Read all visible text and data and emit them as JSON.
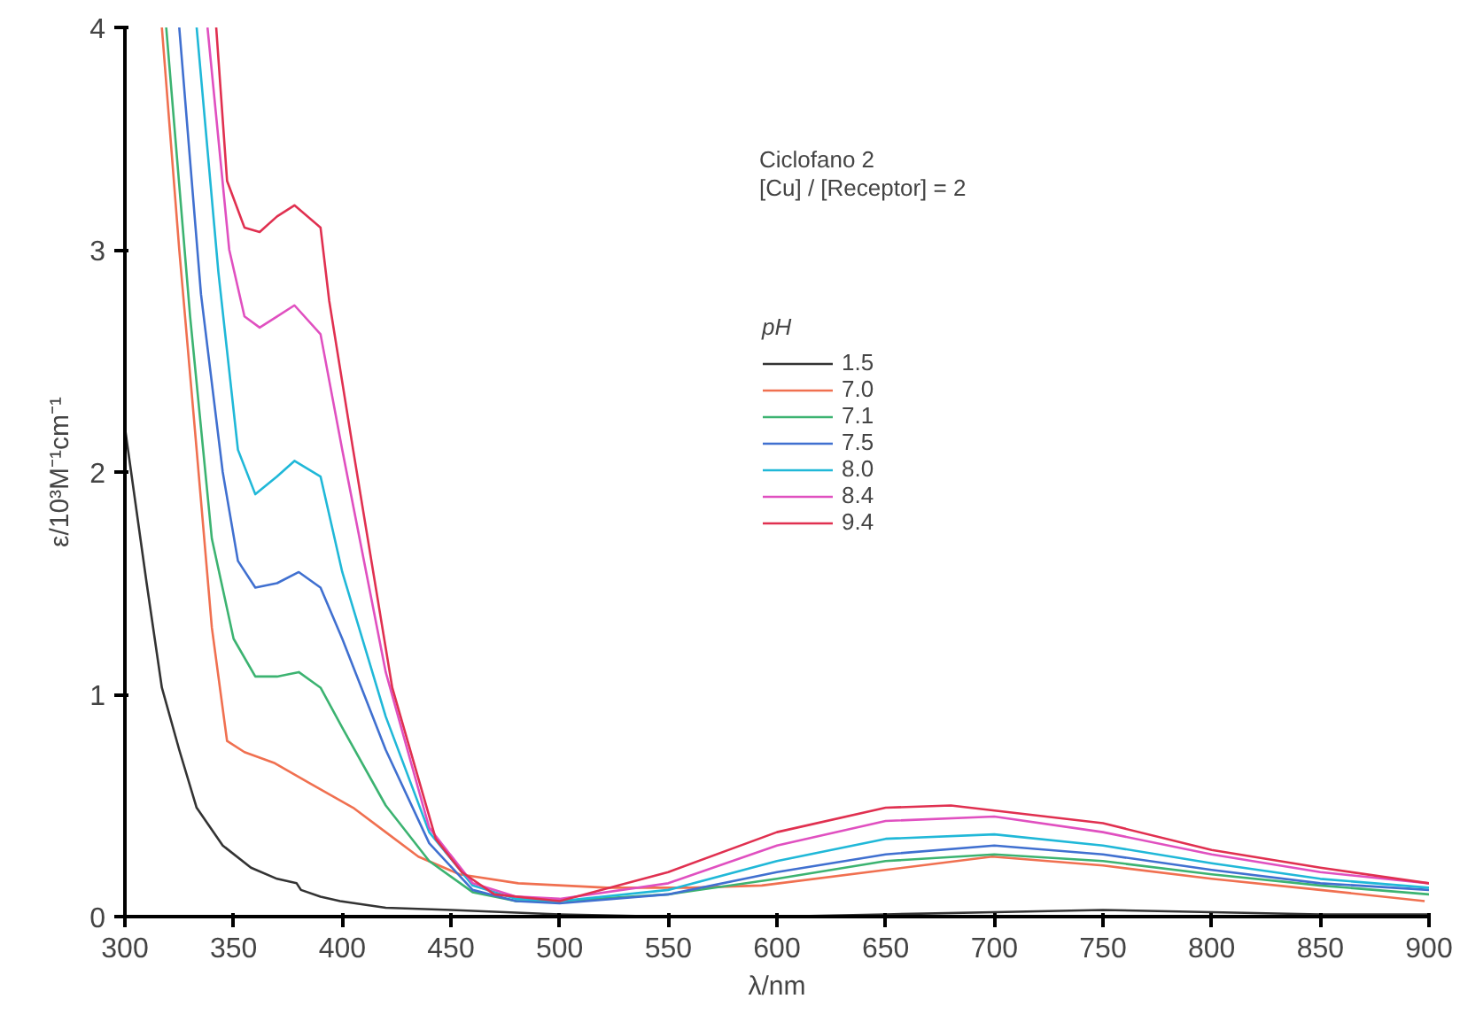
{
  "chart_data": {
    "type": "line",
    "xlabel": "λ/nm",
    "ylabel": "ε/10³M⁻¹cm⁻¹",
    "legend_title": "pH",
    "annotations": [
      "Ciclofano 2",
      "[Cu] / [Receptor] = 2"
    ],
    "xlim": [
      300,
      900
    ],
    "ylim": [
      0,
      4
    ],
    "xticks": [
      300,
      350,
      400,
      450,
      500,
      550,
      600,
      650,
      700,
      750,
      800,
      850,
      900
    ],
    "yticks": [
      0,
      1,
      2,
      3,
      4
    ],
    "grid": false,
    "legend": "top right",
    "marker": "none",
    "line_style": "solid",
    "series": [
      {
        "name": "1.5",
        "color": "#333333",
        "x": [
          300,
          310,
          317,
          325,
          333,
          345,
          358,
          370,
          379,
          381,
          390,
          399,
          420,
          450,
          500,
          550,
          600,
          650,
          700,
          750,
          800,
          850,
          900
        ],
        "values": [
          2.2,
          1.5,
          1.03,
          0.75,
          0.49,
          0.32,
          0.22,
          0.17,
          0.15,
          0.12,
          0.09,
          0.07,
          0.04,
          0.03,
          0.01,
          0.0,
          0.0,
          0.01,
          0.02,
          0.03,
          0.02,
          0.01,
          0.01
        ]
      },
      {
        "name": "7.0",
        "color": "#f07050",
        "x": [
          317,
          325,
          333,
          340,
          347,
          355,
          369,
          385,
          405,
          420,
          435,
          454,
          481,
          522,
          560,
          593,
          650,
          699,
          750,
          800,
          850,
          898
        ],
        "values": [
          4.0,
          3.0,
          2.1,
          1.3,
          0.79,
          0.74,
          0.69,
          0.6,
          0.49,
          0.38,
          0.27,
          0.19,
          0.15,
          0.13,
          0.13,
          0.14,
          0.21,
          0.27,
          0.23,
          0.17,
          0.12,
          0.07
        ]
      },
      {
        "name": "7.1",
        "color": "#3cb371",
        "x": [
          319,
          330,
          340,
          350,
          360,
          370,
          380,
          390,
          400,
          420,
          440,
          460,
          480,
          500,
          550,
          600,
          650,
          700,
          750,
          800,
          850,
          900
        ],
        "values": [
          4.0,
          2.7,
          1.7,
          1.25,
          1.08,
          1.08,
          1.1,
          1.03,
          0.85,
          0.5,
          0.25,
          0.11,
          0.07,
          0.07,
          0.1,
          0.17,
          0.25,
          0.28,
          0.25,
          0.19,
          0.14,
          0.1
        ]
      },
      {
        "name": "7.5",
        "color": "#4070d0",
        "x": [
          325,
          335,
          345,
          352,
          360,
          370,
          380,
          390,
          400,
          420,
          440,
          460,
          480,
          500,
          550,
          600,
          650,
          700,
          750,
          800,
          850,
          900
        ],
        "values": [
          4.0,
          2.8,
          2.0,
          1.6,
          1.48,
          1.5,
          1.55,
          1.48,
          1.25,
          0.75,
          0.33,
          0.12,
          0.07,
          0.06,
          0.1,
          0.2,
          0.28,
          0.32,
          0.28,
          0.21,
          0.15,
          0.12
        ]
      },
      {
        "name": "8.0",
        "color": "#20b8d8",
        "x": [
          333,
          343,
          352,
          360,
          370,
          378,
          390,
          400,
          420,
          440,
          460,
          480,
          500,
          550,
          600,
          650,
          700,
          750,
          800,
          850,
          900
        ],
        "values": [
          4.0,
          2.9,
          2.1,
          1.9,
          1.98,
          2.05,
          1.98,
          1.55,
          0.9,
          0.38,
          0.14,
          0.08,
          0.07,
          0.12,
          0.25,
          0.35,
          0.37,
          0.32,
          0.24,
          0.17,
          0.13
        ]
      },
      {
        "name": "8.4",
        "color": "#e050c0",
        "x": [
          338,
          348,
          355,
          362,
          370,
          378,
          390,
          400,
          420,
          440,
          460,
          480,
          500,
          550,
          600,
          650,
          700,
          750,
          800,
          850,
          900
        ],
        "values": [
          4.0,
          3.0,
          2.7,
          2.65,
          2.7,
          2.75,
          2.62,
          2.1,
          1.1,
          0.4,
          0.15,
          0.09,
          0.08,
          0.15,
          0.32,
          0.43,
          0.45,
          0.38,
          0.28,
          0.2,
          0.15
        ]
      },
      {
        "name": "9.4",
        "color": "#e03050",
        "x": [
          342,
          347,
          355,
          362,
          370,
          378,
          390,
          394,
          405,
          423,
          443,
          455,
          470,
          500,
          550,
          600,
          650,
          680,
          750,
          800,
          850,
          900
        ],
        "values": [
          4.0,
          3.31,
          3.1,
          3.08,
          3.15,
          3.2,
          3.1,
          2.77,
          2.1,
          1.03,
          0.35,
          0.2,
          0.1,
          0.07,
          0.2,
          0.38,
          0.49,
          0.5,
          0.42,
          0.3,
          0.22,
          0.15
        ]
      }
    ]
  }
}
